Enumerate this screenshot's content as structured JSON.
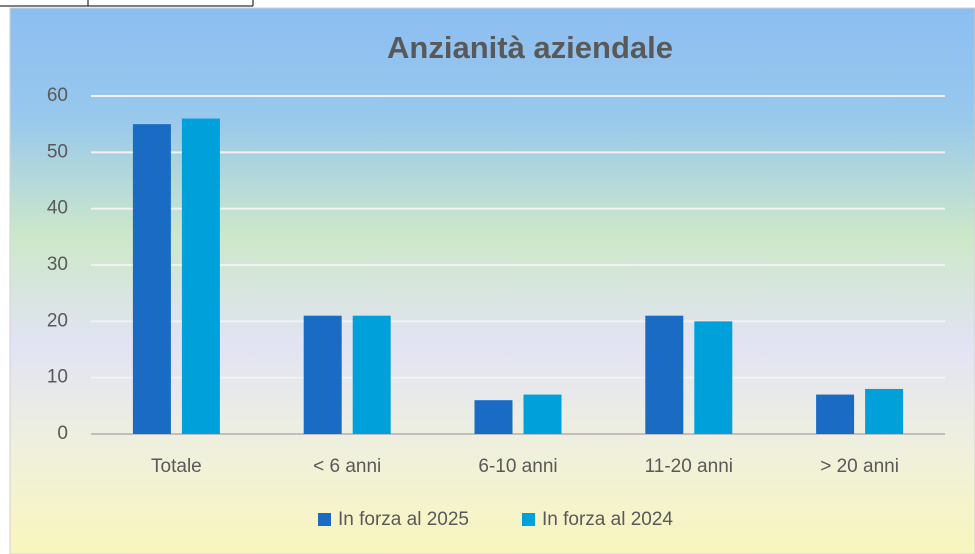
{
  "chart_data": {
    "type": "bar",
    "title": "Anzianità aziendale",
    "categories": [
      "Totale",
      "< 6 anni",
      "6-10 anni",
      "11-20 anni",
      "> 20 anni"
    ],
    "series": [
      {
        "name": "In forza al 2025",
        "color": "#1a6bc4",
        "values": [
          55,
          21,
          6,
          21,
          7
        ]
      },
      {
        "name": "In forza al 2024",
        "color": "#00a0db",
        "values": [
          56,
          21,
          7,
          20,
          8
        ]
      }
    ],
    "ylim": [
      0,
      60
    ],
    "yticks": [
      0,
      10,
      20,
      30,
      40,
      50,
      60
    ],
    "grid": true,
    "legend": "bottom"
  }
}
